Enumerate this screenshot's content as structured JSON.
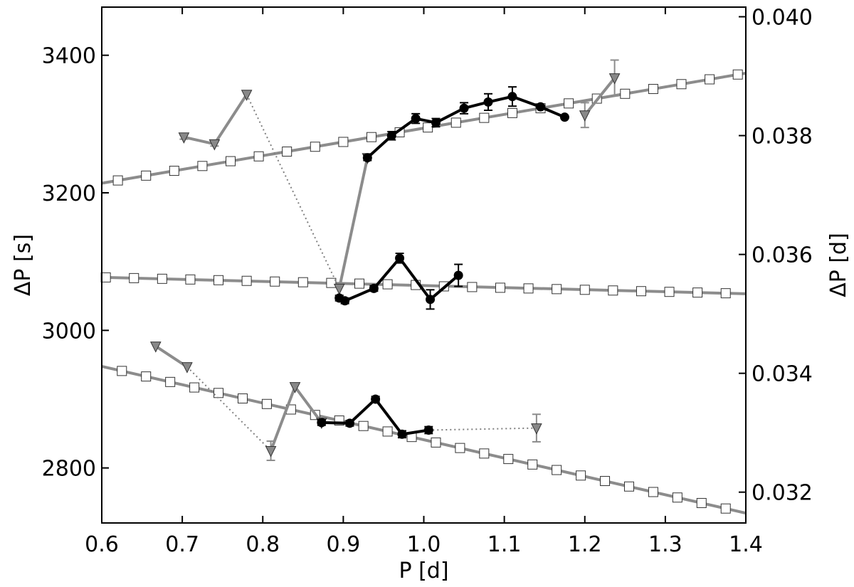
{
  "chart_data": {
    "type": "line",
    "title": "",
    "xlabel": "P [d]",
    "ylabel": "ΔP [s]",
    "ylabel_right": "ΔP [d]",
    "xlim": [
      0.6,
      1.4
    ],
    "ylim": [
      2720,
      3470
    ],
    "xticks": [
      "0.6",
      "0.7",
      "0.8",
      "0.9",
      "1.0",
      "1.1",
      "1.2",
      "1.3",
      "1.4"
    ],
    "yticks": [
      "2800",
      "3000",
      "3200",
      "3400"
    ],
    "yticks_right": [
      "0.032",
      "0.034",
      "0.036",
      "0.038",
      "0.040"
    ],
    "legend": "none",
    "grid": false,
    "colors": {
      "model": "#8c8c8c",
      "observed": "#000000",
      "candidate": "#8c8c8c",
      "marker_face_model": "#ffffff",
      "marker_face_candidate": "#888888"
    },
    "series": [
      {
        "role": "model",
        "style": "grey line, open squares",
        "x": [
          0.62,
          0.655,
          0.69,
          0.725,
          0.76,
          0.795,
          0.83,
          0.865,
          0.9,
          0.935,
          0.97,
          1.005,
          1.04,
          1.075,
          1.11,
          1.145,
          1.18,
          1.215,
          1.25,
          1.285,
          1.32,
          1.355,
          1.39
        ],
        "y": [
          3218,
          3225,
          3232,
          3239,
          3246,
          3253,
          3260,
          3267,
          3274,
          3281,
          3288,
          3295,
          3302,
          3309,
          3316,
          3323,
          3330,
          3337,
          3344,
          3351,
          3358,
          3365,
          3372
        ]
      },
      {
        "role": "model",
        "style": "grey line, open squares",
        "x": [
          0.605,
          0.64,
          0.675,
          0.71,
          0.745,
          0.78,
          0.815,
          0.85,
          0.885,
          0.92,
          0.955,
          0.99,
          1.025,
          1.06,
          1.095,
          1.13,
          1.165,
          1.2,
          1.235,
          1.27,
          1.305,
          1.34,
          1.375
        ],
        "y": [
          3077,
          3076,
          3075,
          3074,
          3073,
          3072,
          3071,
          3070,
          3069,
          3068,
          3067,
          3066,
          3064,
          3063,
          3062,
          3061,
          3060,
          3059,
          3058,
          3057,
          3056,
          3055,
          3054
        ]
      },
      {
        "role": "model",
        "style": "grey line, open squares",
        "x": [
          0.625,
          0.655,
          0.685,
          0.715,
          0.745,
          0.775,
          0.805,
          0.835,
          0.865,
          0.895,
          0.925,
          0.955,
          0.985,
          1.015,
          1.045,
          1.075,
          1.105,
          1.135,
          1.165,
          1.195,
          1.225,
          1.255,
          1.285,
          1.315,
          1.345,
          1.375
        ],
        "y": [
          2941,
          2933,
          2925,
          2917,
          2909,
          2901,
          2893,
          2885,
          2877,
          2869,
          2861,
          2853,
          2845,
          2837,
          2829,
          2821,
          2813,
          2805,
          2797,
          2789,
          2781,
          2773,
          2765,
          2757,
          2749,
          2741
        ]
      },
      {
        "role": "observed",
        "style": "black line, filled circles",
        "x": [
          0.93,
          0.96,
          0.99,
          1.015,
          1.05,
          1.08,
          1.11,
          1.145,
          1.175
        ],
        "y": [
          3251,
          3283,
          3308,
          3302,
          3323,
          3332,
          3340,
          3325,
          3310
        ],
        "yerr": [
          4,
          6,
          7,
          6,
          8,
          12,
          14,
          0,
          0
        ]
      },
      {
        "role": "observed",
        "style": "black line, filled circles",
        "x": [
          0.895,
          0.902,
          0.938,
          0.97,
          1.008,
          1.043
        ],
        "y": [
          3047,
          3043,
          3061,
          3105,
          3045,
          3080
        ],
        "yerr": [
          4,
          4,
          4,
          7,
          14,
          16
        ]
      },
      {
        "role": "observed",
        "style": "black line, filled circles",
        "x": [
          0.873,
          0.908,
          0.94,
          0.973,
          1.006
        ],
        "y": [
          2866,
          2865,
          2900,
          2849,
          2855
        ],
        "yerr": [
          4,
          4,
          4,
          5,
          5
        ]
      },
      {
        "role": "candidate",
        "style": "grey line, grey triangles",
        "x": [
          0.702,
          0.74,
          0.78
        ],
        "y": [
          3281,
          3271,
          3343
        ],
        "yerr": [
          3,
          3,
          0
        ]
      },
      {
        "role": "candidate",
        "style": "grey line, grey triangles",
        "x": [
          0.895,
          0.93
        ],
        "y": [
          3061,
          3251
        ],
        "yerr": [
          0,
          0
        ]
      },
      {
        "role": "candidate",
        "style": "grey line, grey triangles",
        "x": [
          1.2,
          1.237
        ],
        "y": [
          3313,
          3367
        ],
        "yerr": [
          18,
          26
        ]
      },
      {
        "role": "candidate",
        "style": "grey line, grey triangles",
        "x": [
          0.667,
          0.706
        ],
        "y": [
          2977,
          2947
        ],
        "yerr": [
          0,
          0
        ]
      },
      {
        "role": "candidate",
        "style": "grey line, grey triangles",
        "x": [
          0.81,
          0.84,
          0.873
        ],
        "y": [
          2825,
          2918,
          2866
        ],
        "yerr": [
          14,
          0,
          0
        ]
      },
      {
        "role": "candidate",
        "style": "grey line, grey triangles",
        "x": [
          1.14
        ],
        "y": [
          2858
        ],
        "yerr": [
          20
        ]
      }
    ],
    "connectors": [
      {
        "style": "grey dotted line",
        "x": [
          0.78,
          0.895
        ],
        "y": [
          3343,
          3061
        ]
      },
      {
        "style": "grey dotted line",
        "x": [
          0.706,
          0.81
        ],
        "y": [
          2947,
          2825
        ]
      },
      {
        "style": "grey dotted line",
        "x": [
          1.006,
          1.14
        ],
        "y": [
          2855,
          2858
        ]
      }
    ]
  }
}
